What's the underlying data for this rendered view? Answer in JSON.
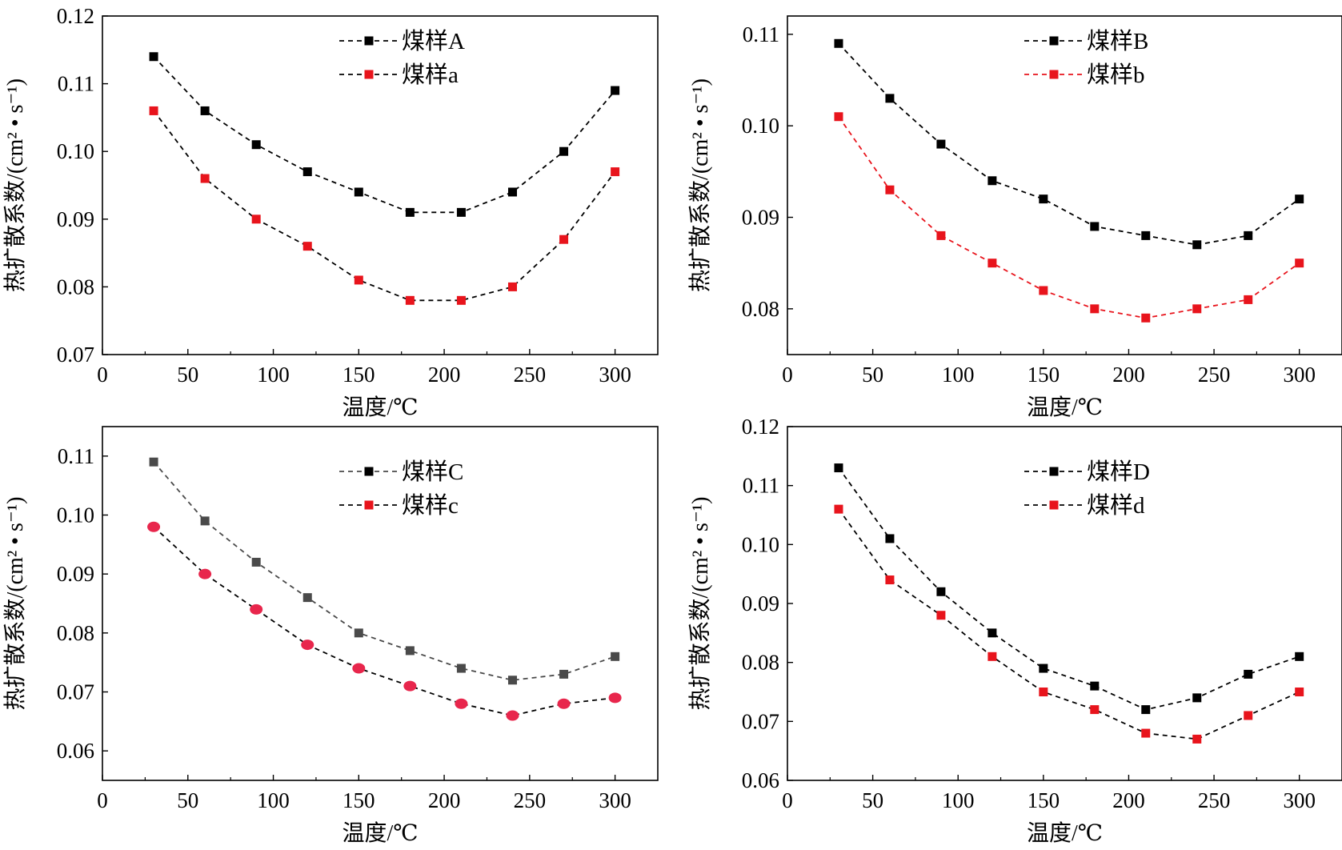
{
  "chart_data": [
    {
      "type": "line",
      "xlabel": "温度/℃",
      "ylabel": "热扩散系数/(cm² • s⁻¹)",
      "xlim": [
        0,
        325
      ],
      "ylim": [
        0.07,
        0.12
      ],
      "xticks": [
        0,
        50,
        100,
        150,
        200,
        250,
        300
      ],
      "xtick_labels": [
        "0",
        "50",
        "100",
        "150",
        "200",
        "250",
        "300"
      ],
      "yticks": [
        0.07,
        0.08,
        0.09,
        0.1,
        0.11,
        0.12
      ],
      "ytick_labels": [
        "0.07",
        "0.08",
        "0.09",
        "0.10",
        "0.11",
        "0.12"
      ],
      "legend_position": "top-center",
      "x": [
        30,
        60,
        90,
        120,
        150,
        180,
        210,
        240,
        270,
        300
      ],
      "series": [
        {
          "name": "煤样A",
          "color": "#000000",
          "marker": "square",
          "values": [
            0.114,
            0.106,
            0.101,
            0.097,
            0.094,
            0.091,
            0.091,
            0.094,
            0.1,
            0.109
          ]
        },
        {
          "name": "煤样a",
          "color": "#e8141c",
          "line_color": "#000000",
          "marker": "square",
          "values": [
            0.106,
            0.096,
            0.09,
            0.086,
            0.081,
            0.078,
            0.078,
            0.08,
            0.087,
            0.097
          ]
        }
      ]
    },
    {
      "type": "line",
      "xlabel": "温度/℃",
      "ylabel": "热扩散系数/(cm² • s⁻¹)",
      "xlim": [
        0,
        325
      ],
      "ylim": [
        0.075,
        0.112
      ],
      "xticks": [
        0,
        50,
        100,
        150,
        200,
        250,
        300
      ],
      "xtick_labels": [
        "0",
        "50",
        "100",
        "150",
        "200",
        "250",
        "300"
      ],
      "yticks": [
        0.08,
        0.09,
        0.1,
        0.11
      ],
      "ytick_labels": [
        "0.08",
        "0.09",
        "0.10",
        "0.11"
      ],
      "legend_position": "top-center",
      "x": [
        30,
        60,
        90,
        120,
        150,
        180,
        210,
        240,
        270,
        300
      ],
      "series": [
        {
          "name": "煤样B",
          "color": "#000000",
          "marker": "square",
          "values": [
            0.109,
            0.103,
            0.098,
            0.094,
            0.092,
            0.089,
            0.088,
            0.087,
            0.088,
            0.092
          ]
        },
        {
          "name": "煤样b",
          "color": "#e8141c",
          "line_color": "#e8141c",
          "marker": "square",
          "values": [
            0.101,
            0.093,
            0.088,
            0.085,
            0.082,
            0.08,
            0.079,
            0.08,
            0.081,
            0.085
          ]
        }
      ]
    },
    {
      "type": "line",
      "xlabel": "温度/℃",
      "ylabel": "热扩散系数/(cm² • s⁻¹)",
      "xlim": [
        0,
        325
      ],
      "ylim": [
        0.055,
        0.115
      ],
      "xticks": [
        0,
        50,
        100,
        150,
        200,
        250,
        300
      ],
      "xtick_labels": [
        "0",
        "50",
        "100",
        "150",
        "200",
        "250",
        "300"
      ],
      "yticks": [
        0.06,
        0.07,
        0.08,
        0.09,
        0.1,
        0.11
      ],
      "ytick_labels": [
        "0.06",
        "0.07",
        "0.08",
        "0.09",
        "0.10",
        "0.11"
      ],
      "legend_position": "top-center",
      "x": [
        30,
        60,
        90,
        120,
        150,
        180,
        210,
        240,
        270,
        300
      ],
      "series": [
        {
          "name": "煤样C",
          "color": "#4a4a4a",
          "legend_color": "#000000",
          "marker": "square",
          "values": [
            0.109,
            0.099,
            0.092,
            0.086,
            0.08,
            0.077,
            0.074,
            0.072,
            0.073,
            0.076
          ]
        },
        {
          "name": "煤样c",
          "color": "#e8264c",
          "legend_color": "#e8141c",
          "line_color": "#000000",
          "marker": "circle",
          "values": [
            0.098,
            0.09,
            0.084,
            0.078,
            0.074,
            0.071,
            0.068,
            0.066,
            0.068,
            0.069
          ]
        }
      ]
    },
    {
      "type": "line",
      "xlabel": "温度/℃",
      "ylabel": "热扩散系数/(cm² • s⁻¹)",
      "xlim": [
        0,
        325
      ],
      "ylim": [
        0.06,
        0.12
      ],
      "xticks": [
        0,
        50,
        100,
        150,
        200,
        250,
        300
      ],
      "xtick_labels": [
        "0",
        "50",
        "100",
        "150",
        "200",
        "250",
        "300"
      ],
      "yticks": [
        0.06,
        0.07,
        0.08,
        0.09,
        0.1,
        0.11,
        0.12
      ],
      "ytick_labels": [
        "0.06",
        "0.07",
        "0.08",
        "0.09",
        "0.10",
        "0.11",
        "0.12"
      ],
      "legend_position": "top-center",
      "x": [
        30,
        60,
        90,
        120,
        150,
        180,
        210,
        240,
        270,
        300
      ],
      "series": [
        {
          "name": "煤样D",
          "color": "#000000",
          "marker": "square",
          "values": [
            0.113,
            0.101,
            0.092,
            0.085,
            0.079,
            0.076,
            0.072,
            0.074,
            0.078,
            0.081
          ]
        },
        {
          "name": "煤样d",
          "color": "#e8141c",
          "line_color": "#000000",
          "marker": "square",
          "values": [
            0.106,
            0.094,
            0.088,
            0.081,
            0.075,
            0.072,
            0.068,
            0.067,
            0.071,
            0.075
          ]
        }
      ]
    }
  ]
}
